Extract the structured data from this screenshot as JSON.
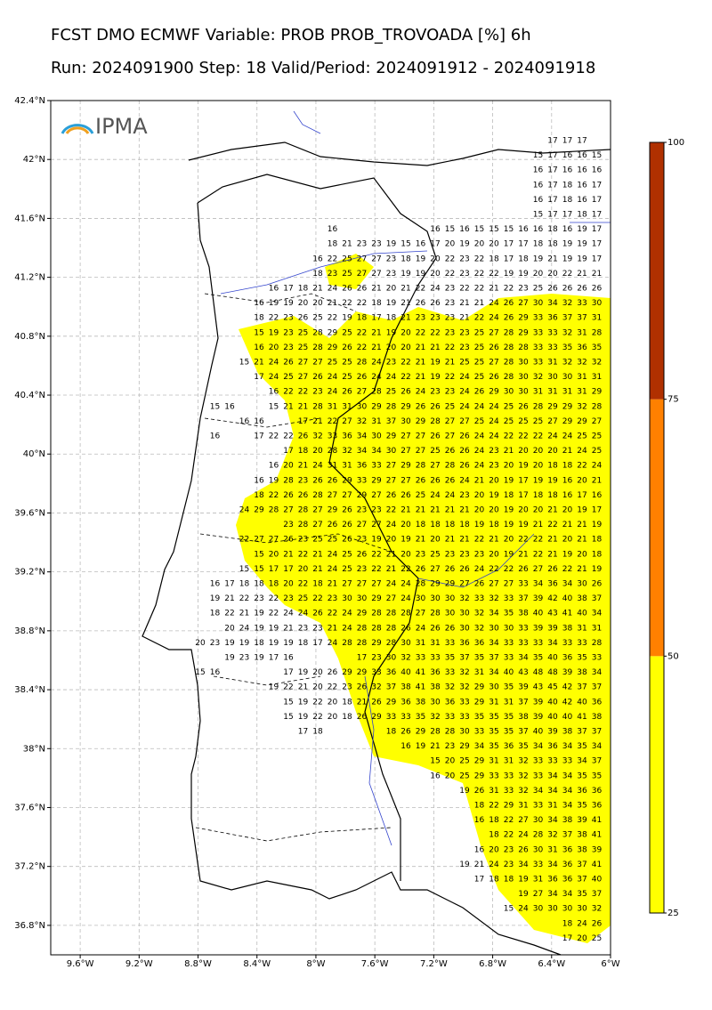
{
  "header": {
    "title": "FCST DMO ECMWF Variable: PROB PROB_TROVOADA [%] 6h",
    "subtitle": "Run: 2024091900 Step: 18 Valid/Period: 2024091912 - 2024091918"
  },
  "logo": "IPMA",
  "map": {
    "xlim": [
      -9.8,
      -6
    ],
    "ylim": [
      36.6,
      42.4
    ],
    "xticks": [
      {
        "value": -9.6,
        "label": "9.6°W"
      },
      {
        "value": -9.2,
        "label": "9.2°W"
      },
      {
        "value": -8.8,
        "label": "8.8°W"
      },
      {
        "value": -8.4,
        "label": "8.4°W"
      },
      {
        "value": -8,
        "label": "8°W"
      },
      {
        "value": -7.6,
        "label": "7.6°W"
      },
      {
        "value": -7.2,
        "label": "7.2°W"
      },
      {
        "value": -6.8,
        "label": "6.8°W"
      },
      {
        "value": -6.4,
        "label": "6.4°W"
      },
      {
        "value": -6,
        "label": "6°W"
      }
    ],
    "yticks": [
      {
        "value": 36.8,
        "label": "36.8°N"
      },
      {
        "value": 37.2,
        "label": "37.2°N"
      },
      {
        "value": 37.6,
        "label": "37.6°N"
      },
      {
        "value": 38,
        "label": "38°N"
      },
      {
        "value": 38.4,
        "label": "38.4°N"
      },
      {
        "value": 38.8,
        "label": "38.8°N"
      },
      {
        "value": 39.2,
        "label": "39.2°N"
      },
      {
        "value": 39.6,
        "label": "39.6°N"
      },
      {
        "value": 40,
        "label": "40°N"
      },
      {
        "value": 40.4,
        "label": "40.4°N"
      },
      {
        "value": 40.8,
        "label": "40.8°N"
      },
      {
        "value": 41.2,
        "label": "41.2°N"
      },
      {
        "value": 41.6,
        "label": "41.6°N"
      },
      {
        "value": 42,
        "label": "42°N"
      },
      {
        "value": 42.4,
        "label": "42.4°N"
      }
    ],
    "rows": [
      [
        17,
        17,
        17,
        null
      ],
      [
        15,
        17,
        16,
        16,
        15
      ],
      [
        16,
        17,
        16,
        16,
        16
      ],
      [
        16,
        17,
        18,
        16,
        17
      ],
      [
        16,
        17,
        18,
        16,
        17
      ],
      [
        15,
        17,
        17,
        18,
        17
      ],
      [
        16,
        null,
        null,
        null,
        null,
        null,
        null,
        16,
        15,
        16,
        15,
        15,
        15,
        16,
        16,
        18,
        16,
        19,
        17
      ],
      [
        18,
        21,
        23,
        23,
        19,
        15,
        16,
        17,
        20,
        19,
        20,
        20,
        17,
        17,
        18,
        18,
        19,
        19,
        17
      ],
      [
        16,
        22,
        25,
        27,
        27,
        23,
        18,
        19,
        20,
        22,
        23,
        22,
        18,
        17,
        18,
        19,
        21,
        19,
        19,
        17
      ],
      [
        18,
        23,
        25,
        27,
        27,
        23,
        19,
        19,
        20,
        22,
        23,
        22,
        22,
        19,
        19,
        20,
        20,
        22,
        21,
        21
      ],
      [
        16,
        17,
        18,
        21,
        24,
        26,
        26,
        21,
        20,
        21,
        22,
        24,
        23,
        22,
        22,
        21,
        22,
        23,
        25,
        26,
        26,
        26,
        26
      ],
      [
        16,
        19,
        19,
        20,
        20,
        21,
        22,
        22,
        18,
        19,
        21,
        26,
        26,
        23,
        21,
        21,
        24,
        26,
        27,
        30,
        34,
        32,
        33,
        30
      ],
      [
        18,
        22,
        23,
        26,
        25,
        22,
        19,
        18,
        17,
        18,
        21,
        23,
        23,
        23,
        21,
        22,
        24,
        26,
        29,
        33,
        36,
        37,
        37,
        31
      ],
      [
        15,
        19,
        23,
        25,
        28,
        29,
        25,
        22,
        21,
        19,
        20,
        22,
        22,
        23,
        23,
        25,
        27,
        28,
        29,
        33,
        33,
        32,
        31,
        28
      ],
      [
        16,
        20,
        23,
        25,
        28,
        29,
        26,
        22,
        21,
        20,
        20,
        21,
        21,
        22,
        23,
        25,
        26,
        28,
        28,
        33,
        33,
        35,
        36,
        35
      ],
      [
        15,
        21,
        24,
        26,
        27,
        27,
        25,
        25,
        28,
        24,
        23,
        22,
        21,
        19,
        21,
        25,
        25,
        27,
        28,
        30,
        33,
        31,
        32,
        32,
        32
      ],
      [
        17,
        24,
        25,
        27,
        26,
        24,
        25,
        26,
        24,
        24,
        22,
        21,
        19,
        22,
        24,
        25,
        26,
        28,
        30,
        32,
        30,
        30,
        31,
        31
      ],
      [
        16,
        22,
        22,
        23,
        24,
        26,
        27,
        28,
        25,
        26,
        24,
        23,
        23,
        24,
        26,
        29,
        30,
        30,
        31,
        31,
        31,
        31,
        29
      ],
      [
        15,
        16,
        null,
        null,
        15,
        21,
        21,
        28,
        31,
        31,
        30,
        29,
        28,
        29,
        26,
        26,
        25,
        24,
        24,
        24,
        25,
        26,
        28,
        29,
        29,
        32,
        28
      ],
      [
        16,
        16,
        null,
        null,
        17,
        21,
        22,
        27,
        32,
        31,
        37,
        30,
        29,
        28,
        27,
        27,
        25,
        24,
        25,
        25,
        25,
        27,
        29,
        29,
        27
      ],
      [
        16,
        null,
        null,
        17,
        22,
        22,
        26,
        32,
        33,
        36,
        34,
        30,
        29,
        27,
        27,
        26,
        27,
        26,
        24,
        24,
        22,
        22,
        22,
        24,
        24,
        25,
        25
      ],
      [
        17,
        18,
        20,
        28,
        32,
        34,
        34,
        30,
        27,
        27,
        25,
        26,
        26,
        24,
        23,
        21,
        20,
        20,
        20,
        21,
        24,
        25
      ],
      [
        16,
        20,
        21,
        24,
        31,
        31,
        36,
        33,
        27,
        29,
        28,
        27,
        28,
        26,
        24,
        23,
        20,
        19,
        20,
        18,
        18,
        22,
        24
      ],
      [
        16,
        19,
        28,
        23,
        26,
        26,
        29,
        33,
        29,
        27,
        27,
        26,
        26,
        26,
        24,
        21,
        20,
        19,
        17,
        19,
        19,
        16,
        20,
        21
      ],
      [
        18,
        22,
        26,
        26,
        28,
        27,
        27,
        29,
        27,
        26,
        26,
        25,
        24,
        24,
        23,
        20,
        19,
        18,
        17,
        18,
        18,
        16,
        17,
        16
      ],
      [
        24,
        29,
        28,
        27,
        28,
        27,
        29,
        26,
        23,
        23,
        22,
        21,
        21,
        21,
        21,
        21,
        20,
        20,
        19,
        20,
        20,
        21,
        20,
        19,
        17
      ],
      [
        23,
        28,
        27,
        26,
        26,
        27,
        27,
        24,
        20,
        18,
        18,
        18,
        18,
        19,
        18,
        19,
        19,
        21,
        22,
        21,
        21,
        19
      ],
      [
        22,
        27,
        27,
        26,
        23,
        25,
        25,
        26,
        23,
        19,
        20,
        19,
        21,
        20,
        21,
        21,
        22,
        21,
        20,
        22,
        22,
        21,
        20,
        21,
        18
      ],
      [
        15,
        20,
        21,
        22,
        21,
        24,
        25,
        26,
        22,
        21,
        20,
        23,
        25,
        23,
        23,
        23,
        20,
        19,
        21,
        22,
        21,
        19,
        20,
        18
      ],
      [
        15,
        15,
        17,
        17,
        20,
        21,
        24,
        25,
        23,
        22,
        21,
        22,
        26,
        27,
        26,
        26,
        24,
        22,
        22,
        26,
        27,
        26,
        22,
        21,
        19
      ],
      [
        16,
        17,
        18,
        18,
        18,
        20,
        22,
        18,
        21,
        27,
        27,
        27,
        24,
        24,
        28,
        29,
        29,
        27,
        26,
        27,
        27,
        33,
        34,
        36,
        34,
        30,
        26
      ],
      [
        19,
        21,
        22,
        23,
        22,
        23,
        25,
        22,
        23,
        30,
        30,
        29,
        27,
        24,
        30,
        30,
        30,
        32,
        33,
        32,
        33,
        37,
        39,
        42,
        40,
        38,
        37
      ],
      [
        18,
        22,
        21,
        19,
        22,
        24,
        24,
        26,
        22,
        24,
        29,
        28,
        28,
        28,
        27,
        28,
        30,
        30,
        32,
        34,
        35,
        38,
        40,
        43,
        41,
        40,
        34
      ],
      [
        20,
        24,
        19,
        19,
        21,
        23,
        23,
        21,
        24,
        28,
        28,
        28,
        26,
        24,
        26,
        26,
        30,
        32,
        30,
        30,
        33,
        39,
        39,
        38,
        31,
        31
      ],
      [
        20,
        23,
        19,
        19,
        18,
        19,
        19,
        18,
        17,
        24,
        28,
        28,
        29,
        28,
        30,
        31,
        31,
        33,
        36,
        36,
        34,
        33,
        33,
        33,
        34,
        33,
        33,
        28
      ],
      [
        19,
        23,
        19,
        17,
        16,
        null,
        null,
        null,
        null,
        17,
        23,
        30,
        32,
        33,
        33,
        35,
        37,
        35,
        37,
        33,
        34,
        35,
        40,
        36,
        35,
        33
      ],
      [
        15,
        16,
        null,
        null,
        null,
        null,
        17,
        19,
        20,
        26,
        29,
        29,
        33,
        36,
        40,
        41,
        36,
        33,
        32,
        31,
        34,
        40,
        43,
        48,
        48,
        39,
        38,
        34
      ],
      [
        19,
        22,
        21,
        20,
        22,
        23,
        26,
        32,
        37,
        38,
        41,
        38,
        32,
        32,
        29,
        30,
        35,
        39,
        43,
        45,
        42,
        37,
        37
      ],
      [
        15,
        19,
        22,
        20,
        18,
        21,
        26,
        29,
        36,
        38,
        30,
        36,
        33,
        29,
        31,
        31,
        37,
        39,
        40,
        42,
        40,
        36
      ],
      [
        15,
        19,
        22,
        20,
        18,
        26,
        29,
        33,
        33,
        35,
        32,
        33,
        33,
        35,
        35,
        35,
        38,
        39,
        40,
        40,
        41,
        38
      ],
      [
        17,
        18,
        null,
        null,
        null,
        null,
        18,
        26,
        29,
        28,
        28,
        30,
        33,
        35,
        35,
        37,
        40,
        39,
        38,
        37,
        37
      ],
      [
        16,
        19,
        21,
        23,
        29,
        34,
        35,
        36,
        35,
        34,
        36,
        34,
        35,
        34
      ],
      [
        15,
        20,
        25,
        29,
        31,
        31,
        32,
        33,
        33,
        33,
        34,
        37
      ],
      [
        16,
        20,
        25,
        29,
        33,
        33,
        32,
        33,
        34,
        34,
        35,
        35
      ],
      [
        19,
        26,
        31,
        33,
        32,
        34,
        34,
        34,
        36,
        36
      ],
      [
        18,
        22,
        29,
        31,
        33,
        31,
        34,
        35,
        36
      ],
      [
        16,
        18,
        22,
        27,
        30,
        34,
        38,
        39,
        41
      ],
      [
        18,
        22,
        24,
        28,
        32,
        37,
        38,
        41
      ],
      [
        16,
        20,
        23,
        26,
        30,
        31,
        36,
        38,
        39
      ],
      [
        19,
        21,
        24,
        23,
        34,
        33,
        34,
        36,
        37,
        41
      ],
      [
        17,
        18,
        18,
        19,
        31,
        36,
        36,
        37,
        40
      ],
      [
        19,
        27,
        34,
        34,
        35,
        37
      ],
      [
        15,
        24,
        30,
        30,
        30,
        30,
        32
      ],
      [
        18,
        24,
        26
      ],
      [
        17,
        20,
        25
      ]
    ]
  },
  "colorbar": {
    "ticks": [
      25,
      50,
      75,
      100
    ],
    "colors": [
      "#ffff00",
      "#ff8000",
      "#b03000"
    ]
  }
}
